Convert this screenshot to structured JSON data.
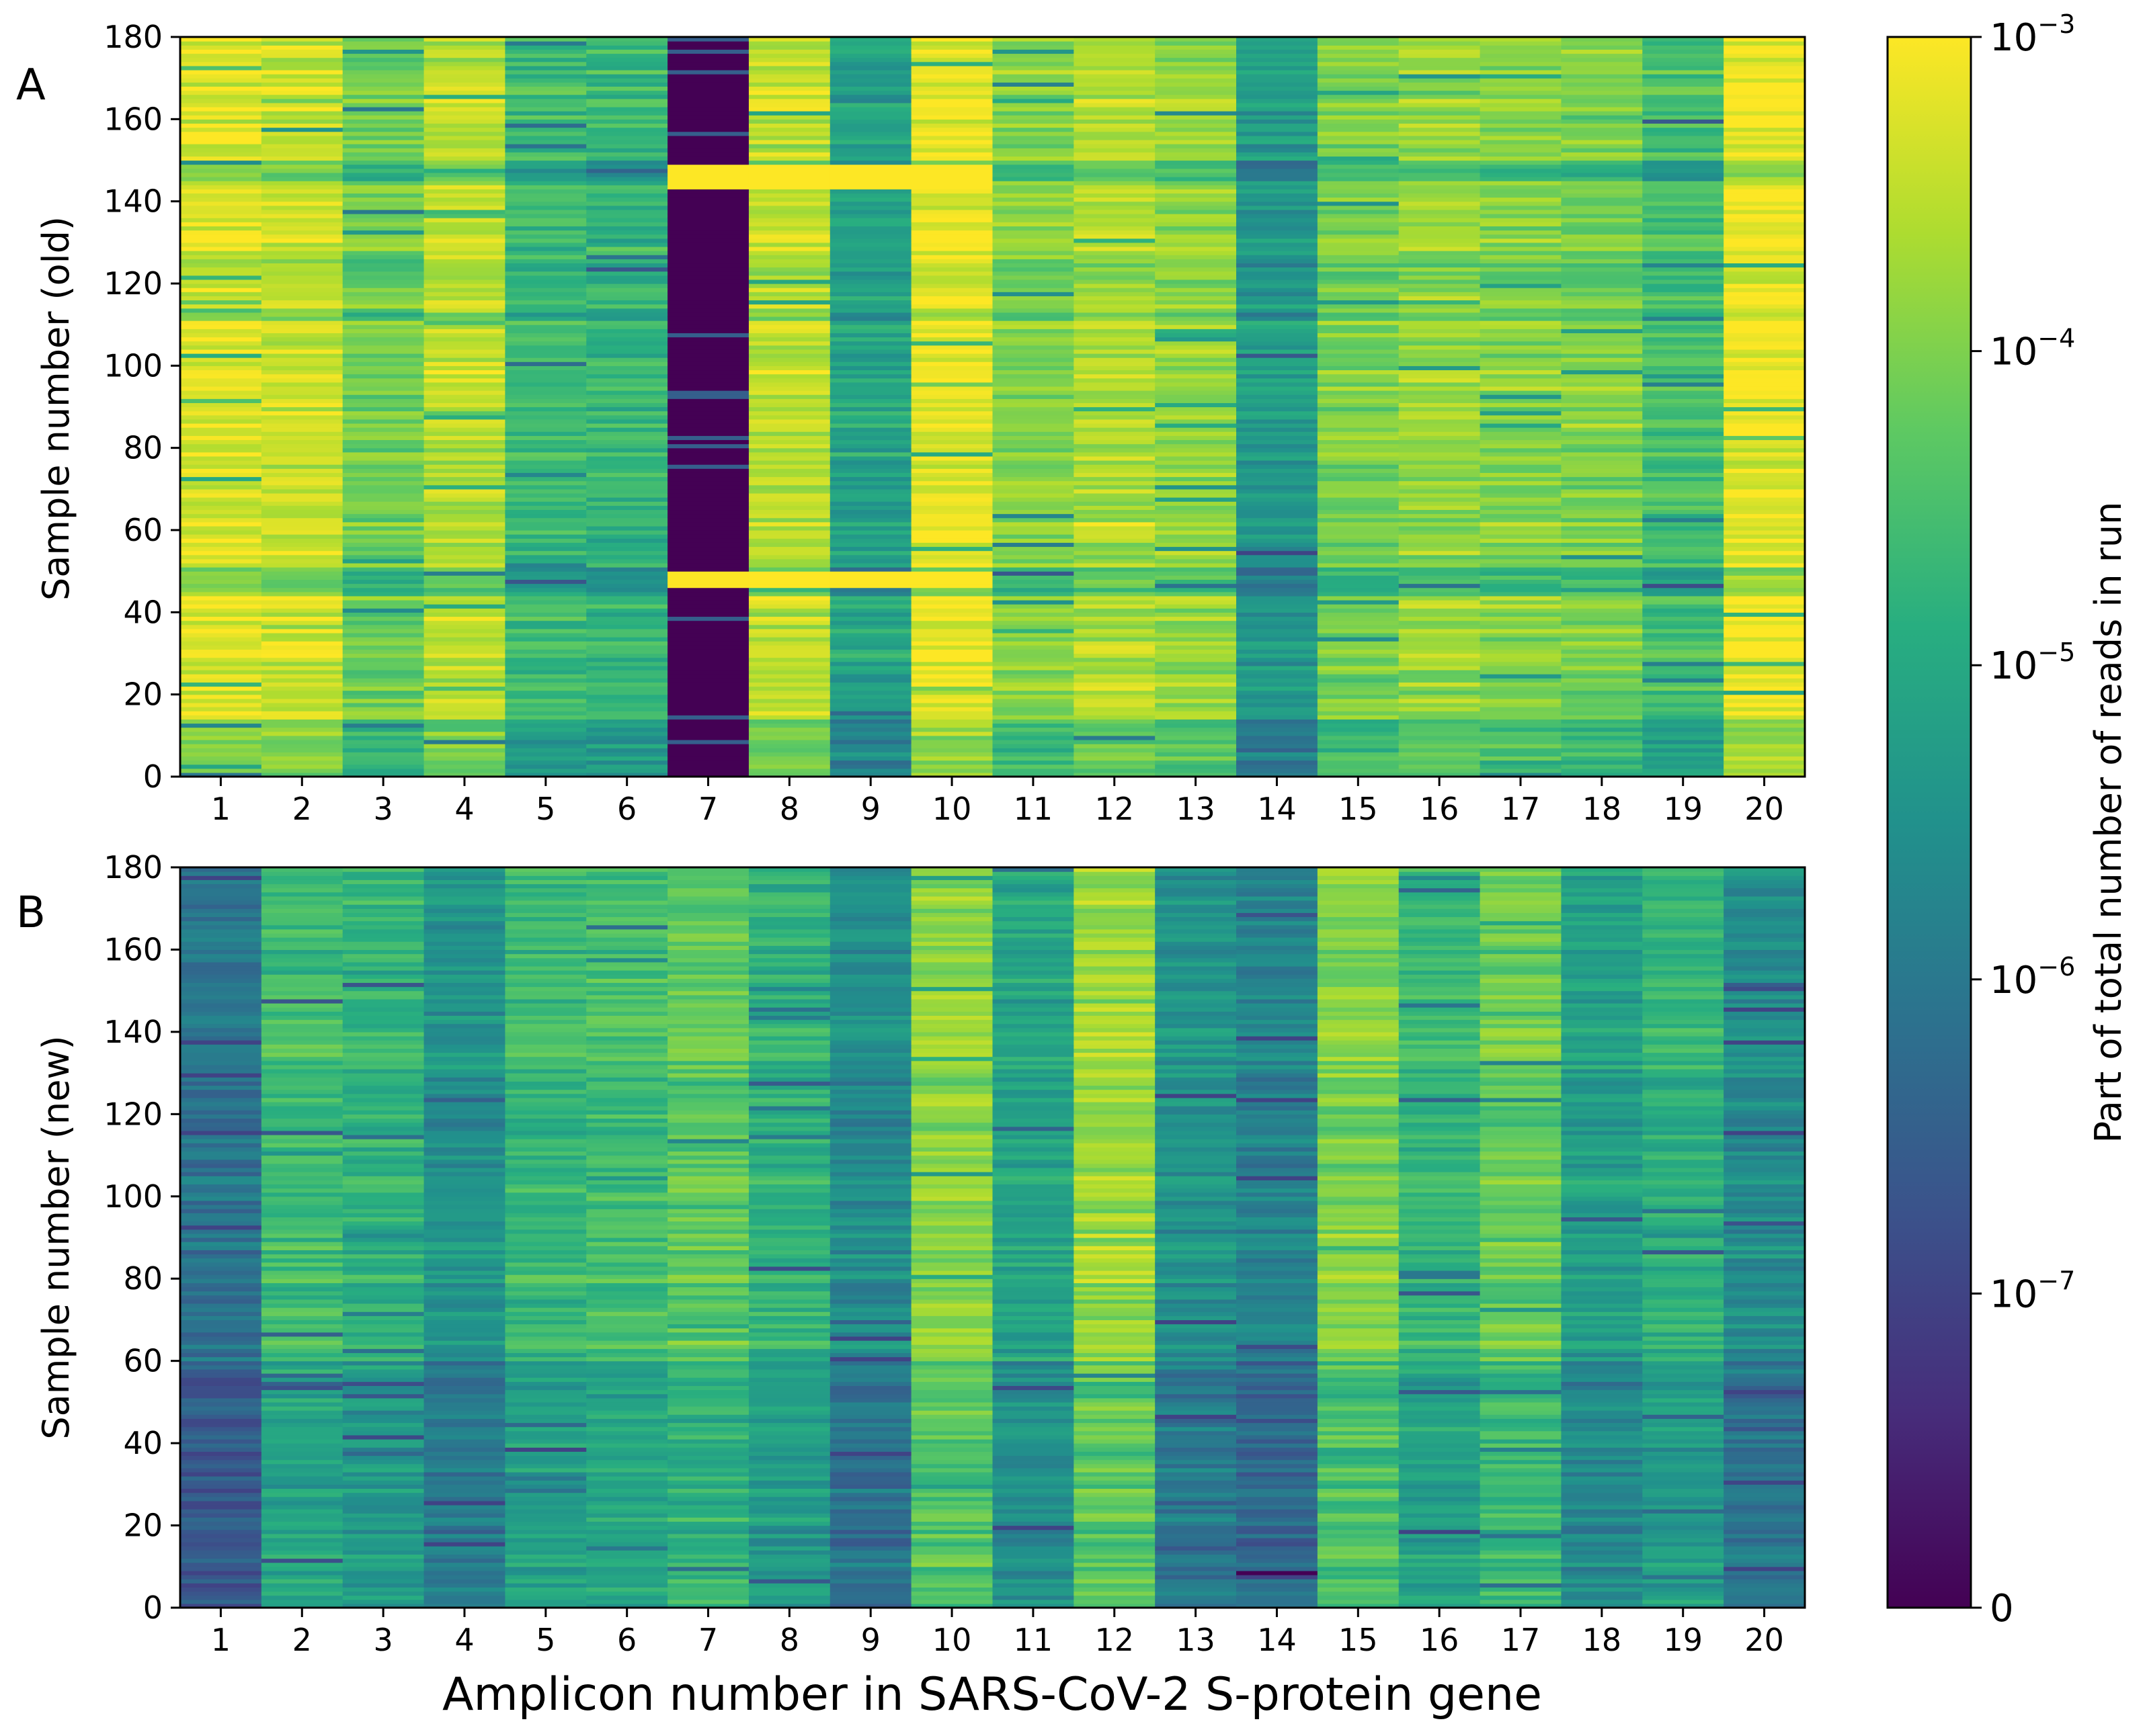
{
  "figure": {
    "xlabel": "Amplicon number in SARS-CoV-2 S-protein gene",
    "colorbar_label": "Part of total number of reads in run"
  },
  "chart_data": [
    {
      "type": "heatmap",
      "panel_label": "A",
      "ylabel": "Sample number (old)",
      "x_categories": [
        "1",
        "2",
        "3",
        "4",
        "5",
        "6",
        "7",
        "8",
        "9",
        "10",
        "11",
        "12",
        "13",
        "14",
        "15",
        "16",
        "17",
        "18",
        "19",
        "20"
      ],
      "yticks": [
        "0",
        "20",
        "40",
        "60",
        "80",
        "100",
        "120",
        "140",
        "160",
        "180"
      ],
      "ylim": [
        0,
        180
      ],
      "rows": 180,
      "color_scale": "log",
      "column_level_log10": [
        -3.3,
        -3.4,
        -4.1,
        -3.5,
        -4.6,
        -4.7,
        -9,
        -3.5,
        -5.1,
        -3.2,
        -3.9,
        -3.6,
        -3.8,
        -5.3,
        -4.0,
        -3.8,
        -3.9,
        -4.0,
        -4.5,
        -3.1
      ],
      "zero_bands": [
        {
          "amplicon": 7,
          "samples": [
            0,
            44
          ]
        },
        {
          "amplicon": 7,
          "samples": [
            51,
            111
          ]
        },
        {
          "amplicon": 7,
          "samples": [
            152,
            180
          ]
        }
      ],
      "high_bands": [
        {
          "amplicons": [
            7,
            10
          ],
          "samples": [
            46,
            50
          ]
        },
        {
          "amplicons": [
            7,
            10
          ],
          "samples": [
            143,
            149
          ]
        }
      ],
      "low_bands": [
        {
          "amplicons": [
            1,
            20
          ],
          "samples": [
            145,
            150
          ],
          "delta_log10": -0.8
        },
        {
          "amplicons": [
            1,
            20
          ],
          "samples": [
            44,
            51
          ],
          "delta_log10": -0.7
        },
        {
          "amplicons": [
            1,
            20
          ],
          "samples": [
            0,
            14
          ],
          "delta_log10": -0.6
        },
        {
          "amplicons": [
            1,
            20
          ],
          "samples": [
            111,
            113
          ],
          "delta_log10": -0.6
        },
        {
          "amplicons": [
            1,
            20
          ],
          "samples": [
            124,
            126
          ],
          "delta_log10": -0.5
        }
      ]
    },
    {
      "type": "heatmap",
      "panel_label": "B",
      "ylabel": "Sample number (new)",
      "x_categories": [
        "1",
        "2",
        "3",
        "4",
        "5",
        "6",
        "7",
        "8",
        "9",
        "10",
        "11",
        "12",
        "13",
        "14",
        "15",
        "16",
        "17",
        "18",
        "19",
        "20"
      ],
      "yticks": [
        "0",
        "20",
        "40",
        "60",
        "80",
        "100",
        "120",
        "140",
        "160",
        "180"
      ],
      "ylim": [
        0,
        180
      ],
      "rows": 180,
      "color_scale": "log",
      "column_level_log10": [
        -6.1,
        -4.6,
        -4.8,
        -5.5,
        -4.7,
        -4.6,
        -4.3,
        -4.8,
        -5.6,
        -3.9,
        -5.1,
        -3.8,
        -5.5,
        -5.8,
        -4.0,
        -4.7,
        -4.2,
        -5.2,
        -4.8,
        -5.6
      ],
      "zero_bands": [],
      "high_bands": [],
      "low_bands": [
        {
          "amplicons": [
            1,
            20
          ],
          "samples": [
            0,
            60
          ],
          "delta_log10": -0.5
        }
      ]
    }
  ],
  "colorbar": {
    "ticks": [
      {
        "label": "0",
        "level": 0,
        "exp": ""
      },
      {
        "label": "10",
        "level": 1,
        "exp": "−7"
      },
      {
        "label": "10",
        "level": 2,
        "exp": "−6"
      },
      {
        "label": "10",
        "level": 3,
        "exp": "−5"
      },
      {
        "label": "10",
        "level": 4,
        "exp": "−4"
      },
      {
        "label": "10",
        "level": 5,
        "exp": "−3"
      }
    ],
    "colormap": "viridis",
    "stops": [
      "#440154",
      "#472d7b",
      "#3b528b",
      "#2c728e",
      "#21918c",
      "#28ae80",
      "#5ec962",
      "#addc30",
      "#fde725"
    ]
  }
}
